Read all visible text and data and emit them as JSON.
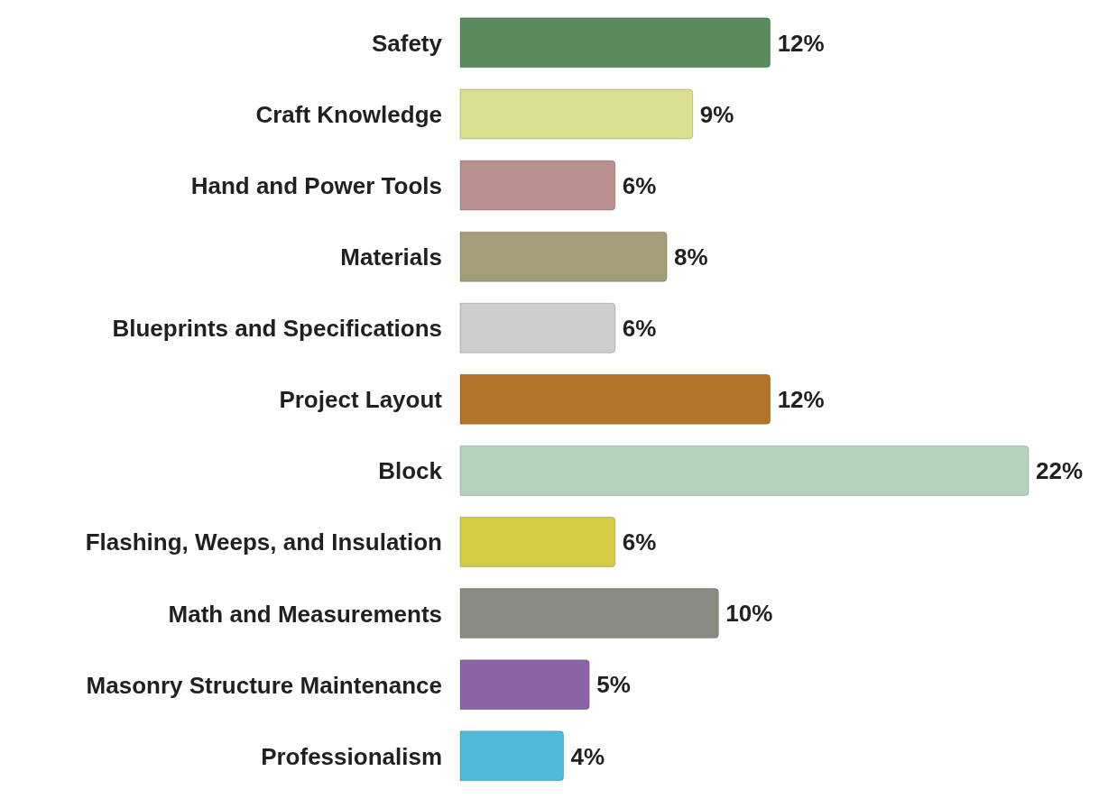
{
  "chart_data": {
    "type": "bar",
    "orientation": "horizontal",
    "categories": [
      "Safety",
      "Craft Knowledge",
      "Hand and Power Tools",
      "Materials",
      "Blueprints and Specifications",
      "Project Layout",
      "Block",
      "Flashing, Weeps, and Insulation",
      "Math and Measurements",
      "Masonry Structure Maintenance",
      "Professionalism"
    ],
    "values": [
      12,
      9,
      6,
      8,
      6,
      12,
      22,
      6,
      10,
      5,
      4
    ],
    "value_labels": [
      "12%",
      "9%",
      "6%",
      "8%",
      "6%",
      "12%",
      "22%",
      "6%",
      "10%",
      "5%",
      "4%"
    ],
    "colors": [
      "#5a8a5e",
      "#dcdf8f",
      "#b98f8f",
      "#a39d78",
      "#cdcdcd",
      "#b37429",
      "#b5d3bc",
      "#d3cc42",
      "#8a8a80",
      "#8c64a5",
      "#4fbadc"
    ],
    "grid": false,
    "legend": false
  }
}
